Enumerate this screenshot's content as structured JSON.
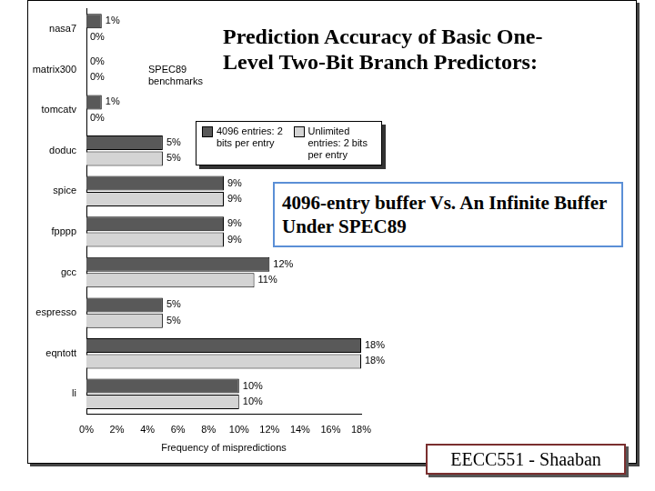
{
  "chart_data": {
    "type": "bar",
    "orientation": "horizontal",
    "title": [
      "Prediction Accuracy of Basic One-",
      "Level Two-Bit Branch Predictors:"
    ],
    "annotations": [
      "SPEC89 benchmarks",
      "4096-entry buffer Vs. An Infinite Buffer Under SPEC89",
      "EECC551 - Shaaban"
    ],
    "x_label": "Frequency of mispredictions",
    "categories": [
      "nasa7",
      "matrix300",
      "tomcatv",
      "doduc",
      "spice",
      "fpppp",
      "gcc",
      "espresso",
      "eqntott",
      "li"
    ],
    "series": [
      {
        "name": "4096 entries: 2 bits per entry",
        "color": "#595959",
        "values": [
          1,
          0,
          1,
          5,
          9,
          9,
          12,
          5,
          18,
          10
        ],
        "value_labels": [
          "1%",
          "0%",
          "1%",
          "5%",
          "9%",
          "9%",
          "12%",
          "5%",
          "18%",
          "10%"
        ]
      },
      {
        "name": "Unlimited entries: 2 bits per entry",
        "color": "#d4d4d4",
        "values": [
          0,
          0,
          0,
          5,
          9,
          9,
          11,
          5,
          18,
          10
        ],
        "value_labels": [
          "0%",
          "0%",
          "0%",
          "5%",
          "9%",
          "9%",
          "11%",
          "5%",
          "18%",
          "10%"
        ]
      }
    ],
    "xlim": [
      0,
      18
    ],
    "xticks": [
      {
        "value": 0,
        "label": "0%"
      },
      {
        "value": 2,
        "label": "2%"
      },
      {
        "value": 4,
        "label": "4%"
      },
      {
        "value": 6,
        "label": "6%"
      },
      {
        "value": 8,
        "label": "8%"
      },
      {
        "value": 10,
        "label": "10%"
      },
      {
        "value": 12,
        "label": "12%"
      },
      {
        "value": 14,
        "label": "14%"
      },
      {
        "value": 16,
        "label": "16%"
      },
      {
        "value": 18,
        "label": "18%"
      }
    ],
    "grid": false,
    "legend": "top",
    "data_labels": true
  }
}
